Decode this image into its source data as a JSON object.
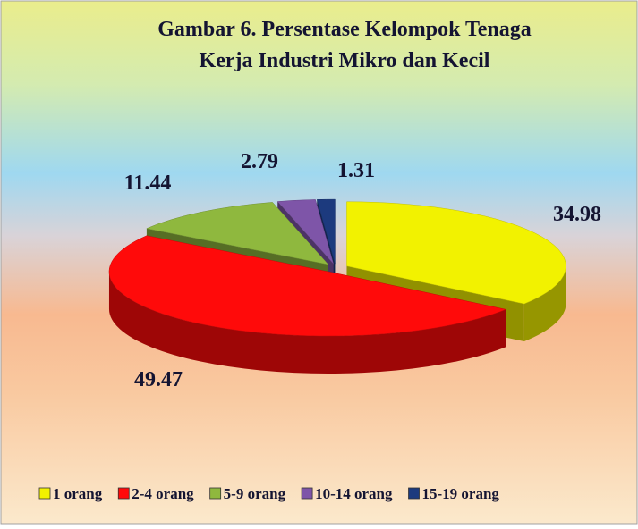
{
  "chart_data": {
    "type": "pie",
    "title": [
      "Gambar 6. Persentase Kelompok Tenaga",
      "Kerja Industri  Mikro dan Kecil"
    ],
    "categories": [
      "1 orang",
      "2-4 orang",
      "5-9 orang",
      "10-14 orang",
      "15-19 orang"
    ],
    "values": [
      34.98,
      49.47,
      11.44,
      2.79,
      1.31
    ],
    "colors": [
      "#f2f200",
      "#ff0a0a",
      "#8fb83e",
      "#7e55a8",
      "#1c3a7e"
    ],
    "legend": "bottom"
  }
}
